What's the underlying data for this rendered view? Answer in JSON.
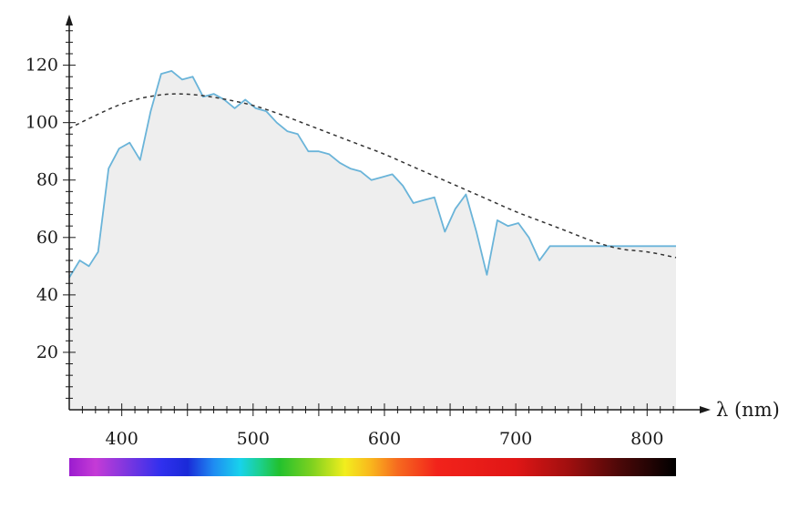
{
  "chart_data": {
    "type": "line",
    "title": "",
    "xlabel": "λ (nm)",
    "ylabel": "",
    "xlim": [
      360,
      822
    ],
    "ylim": [
      0,
      137
    ],
    "x_ticks": [
      400,
      500,
      600,
      700,
      800
    ],
    "y_ticks": [
      20,
      40,
      60,
      80,
      100,
      120
    ],
    "grid": false,
    "legend": "none",
    "series": [
      {
        "style": "solid",
        "color": "#6ab4d9",
        "fill_color": "#eeeeee",
        "x": [
          360,
          368,
          375,
          382,
          390,
          398,
          406,
          414,
          422,
          430,
          438,
          446,
          454,
          462,
          470,
          478,
          486,
          494,
          502,
          510,
          518,
          526,
          534,
          542,
          550,
          558,
          566,
          574,
          582,
          590,
          598,
          606,
          614,
          622,
          630,
          638,
          646,
          654,
          662,
          670,
          678,
          686,
          694,
          702,
          710,
          718,
          726,
          734,
          742,
          750,
          758,
          766,
          774,
          782,
          790,
          798,
          806,
          814,
          822
        ],
        "values": [
          46,
          52,
          50,
          55,
          84,
          91,
          93,
          87,
          104,
          117,
          118,
          115,
          116,
          109,
          110,
          108,
          105,
          108,
          105,
          104,
          100,
          97,
          96,
          90,
          90,
          89,
          86,
          84,
          83,
          80,
          81,
          82,
          78,
          72,
          73,
          74,
          62,
          70,
          75,
          62,
          47,
          66,
          64,
          65,
          60,
          52,
          57,
          57,
          57,
          57,
          57,
          57,
          57,
          57,
          57,
          57,
          57,
          57,
          57
        ]
      },
      {
        "style": "dashed",
        "color": "#333333",
        "x": [
          360,
          380,
          400,
          420,
          440,
          460,
          480,
          500,
          520,
          540,
          560,
          580,
          600,
          620,
          640,
          660,
          680,
          700,
          720,
          740,
          760,
          780,
          800,
          822
        ],
        "values": [
          98,
          102.5,
          106.5,
          109,
          110,
          109.5,
          108,
          106,
          103,
          99.5,
          96,
          92.5,
          89,
          85,
          81,
          77,
          73,
          69,
          65.5,
          62,
          58.5,
          56,
          55,
          53
        ]
      }
    ],
    "spectrum_bar": {
      "xlim": [
        360,
        822
      ],
      "stops": [
        {
          "nm": 360,
          "color": "#9b1ccf"
        },
        {
          "nm": 380,
          "color": "#c53bd6"
        },
        {
          "nm": 405,
          "color": "#7a36e0"
        },
        {
          "nm": 430,
          "color": "#3030ee"
        },
        {
          "nm": 450,
          "color": "#1a2ad8"
        },
        {
          "nm": 470,
          "color": "#1f8cf2"
        },
        {
          "nm": 490,
          "color": "#18d2ec"
        },
        {
          "nm": 505,
          "color": "#1cd08f"
        },
        {
          "nm": 520,
          "color": "#22c12e"
        },
        {
          "nm": 545,
          "color": "#7fd11f"
        },
        {
          "nm": 570,
          "color": "#f2ee1e"
        },
        {
          "nm": 590,
          "color": "#f9b51d"
        },
        {
          "nm": 610,
          "color": "#f66a1f"
        },
        {
          "nm": 640,
          "color": "#f2231b"
        },
        {
          "nm": 700,
          "color": "#e01616"
        },
        {
          "nm": 740,
          "color": "#a00f0f"
        },
        {
          "nm": 780,
          "color": "#4a0808"
        },
        {
          "nm": 822,
          "color": "#000000"
        }
      ]
    }
  }
}
